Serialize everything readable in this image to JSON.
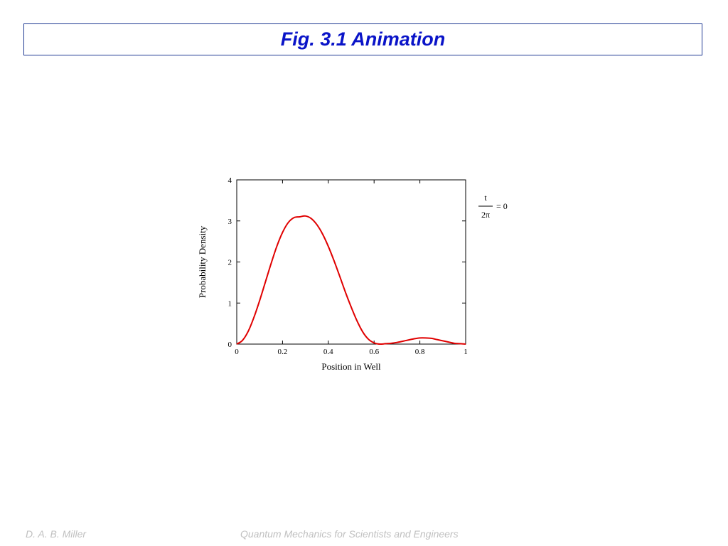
{
  "slide": {
    "title": "Fig. 3.1 Animation",
    "footer_left": "D. A. B. Miller",
    "footer_center": "Quantum Mechanics for Scientists and Engineers"
  },
  "annotation": {
    "numerator": "t",
    "denominator": "2π",
    "equals": "= 0"
  },
  "colors": {
    "title": "#0a14c8",
    "title_border": "#1f3a93",
    "curve": "#e00000",
    "footer": "#c0c0c0"
  },
  "chart_data": {
    "type": "line",
    "title": "",
    "xlabel": "Position in Well",
    "ylabel": "Probability Density",
    "xlim": [
      0,
      1
    ],
    "ylim": [
      0,
      4
    ],
    "xticks": [
      0,
      0.2,
      0.4,
      0.6,
      0.8,
      1
    ],
    "xtick_labels": [
      "0",
      "0.2",
      "0.4",
      "0.6",
      "0.8",
      "1"
    ],
    "yticks": [
      0,
      1,
      2,
      3,
      4
    ],
    "ytick_labels": [
      "0",
      "1",
      "2",
      "3",
      "4"
    ],
    "grid": false,
    "series": [
      {
        "x": [
          0,
          0.025,
          0.05,
          0.075,
          0.1,
          0.125,
          0.15,
          0.175,
          0.2,
          0.225,
          0.25,
          0.275,
          0.3,
          0.325,
          0.35,
          0.375,
          0.4,
          0.425,
          0.45,
          0.475,
          0.5,
          0.525,
          0.55,
          0.575,
          0.6,
          0.625,
          0.65,
          0.675,
          0.7,
          0.725,
          0.75,
          0.775,
          0.8,
          0.825,
          0.85,
          0.875,
          0.9,
          0.925,
          0.95,
          0.975,
          1
        ],
        "y": [
          0,
          0.09,
          0.31,
          0.65,
          1.06,
          1.51,
          1.96,
          2.38,
          2.72,
          2.96,
          3.08,
          3.1,
          3.12,
          3.06,
          2.91,
          2.68,
          2.38,
          2.03,
          1.65,
          1.26,
          0.9,
          0.57,
          0.3,
          0.12,
          0.03,
          0.0,
          0.01,
          0.02,
          0.04,
          0.07,
          0.1,
          0.13,
          0.15,
          0.15,
          0.14,
          0.11,
          0.08,
          0.05,
          0.02,
          0.01,
          0
        ]
      }
    ]
  }
}
